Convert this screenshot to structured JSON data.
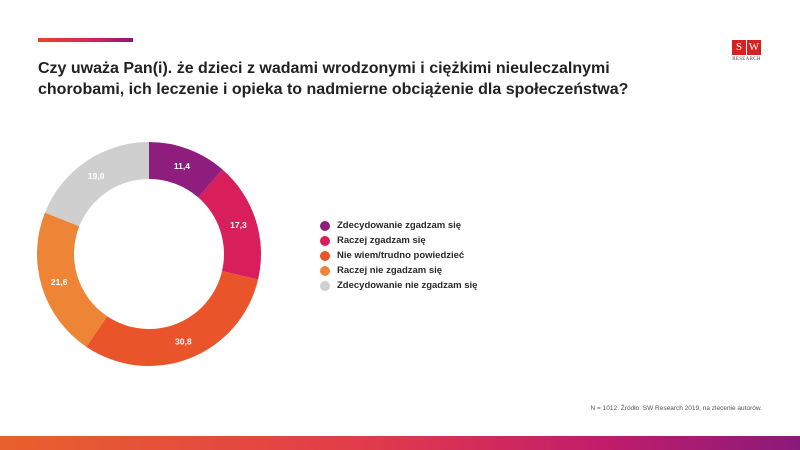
{
  "header": {
    "title": "Czy uważa Pan(i). że dzieci z wadami wrodzonymi i ciężkimi nieuleczalnymi chorobami, ich leczenie i opieka to nadmierne obciążenie dla społeczeństwa?"
  },
  "logo": {
    "letters": [
      "S",
      "W"
    ],
    "subtitle": "RESEARCH"
  },
  "footer": {
    "note": "N = 1012. Źródło: SW Research 2019, na zlecenie autorów."
  },
  "chart_data": {
    "type": "pie",
    "variant": "donut",
    "title": "Czy uważa Pan(i). że dzieci z wadami wrodzonymi i ciężkimi nieuleczalnymi chorobami, ich leczenie i opieka to nadmierne obciążenie dla społeczeństwa?",
    "categories": [
      "Zdecydowanie zgadzam się",
      "Raczej zgadzam się",
      "Nie wiem/trudno powiedzieć",
      "Raczej nie zgadzam się",
      "Zdecydowanie nie zgadzam się"
    ],
    "values": [
      11.4,
      17.3,
      30.8,
      21.6,
      19.0
    ],
    "value_labels": [
      "11,4",
      "17,3",
      "30,8",
      "21,6",
      "19,0"
    ],
    "colors": [
      "#8e1d7e",
      "#d81e5b",
      "#e9542a",
      "#ee8436",
      "#cfcfcf"
    ],
    "legend_position": "right"
  }
}
